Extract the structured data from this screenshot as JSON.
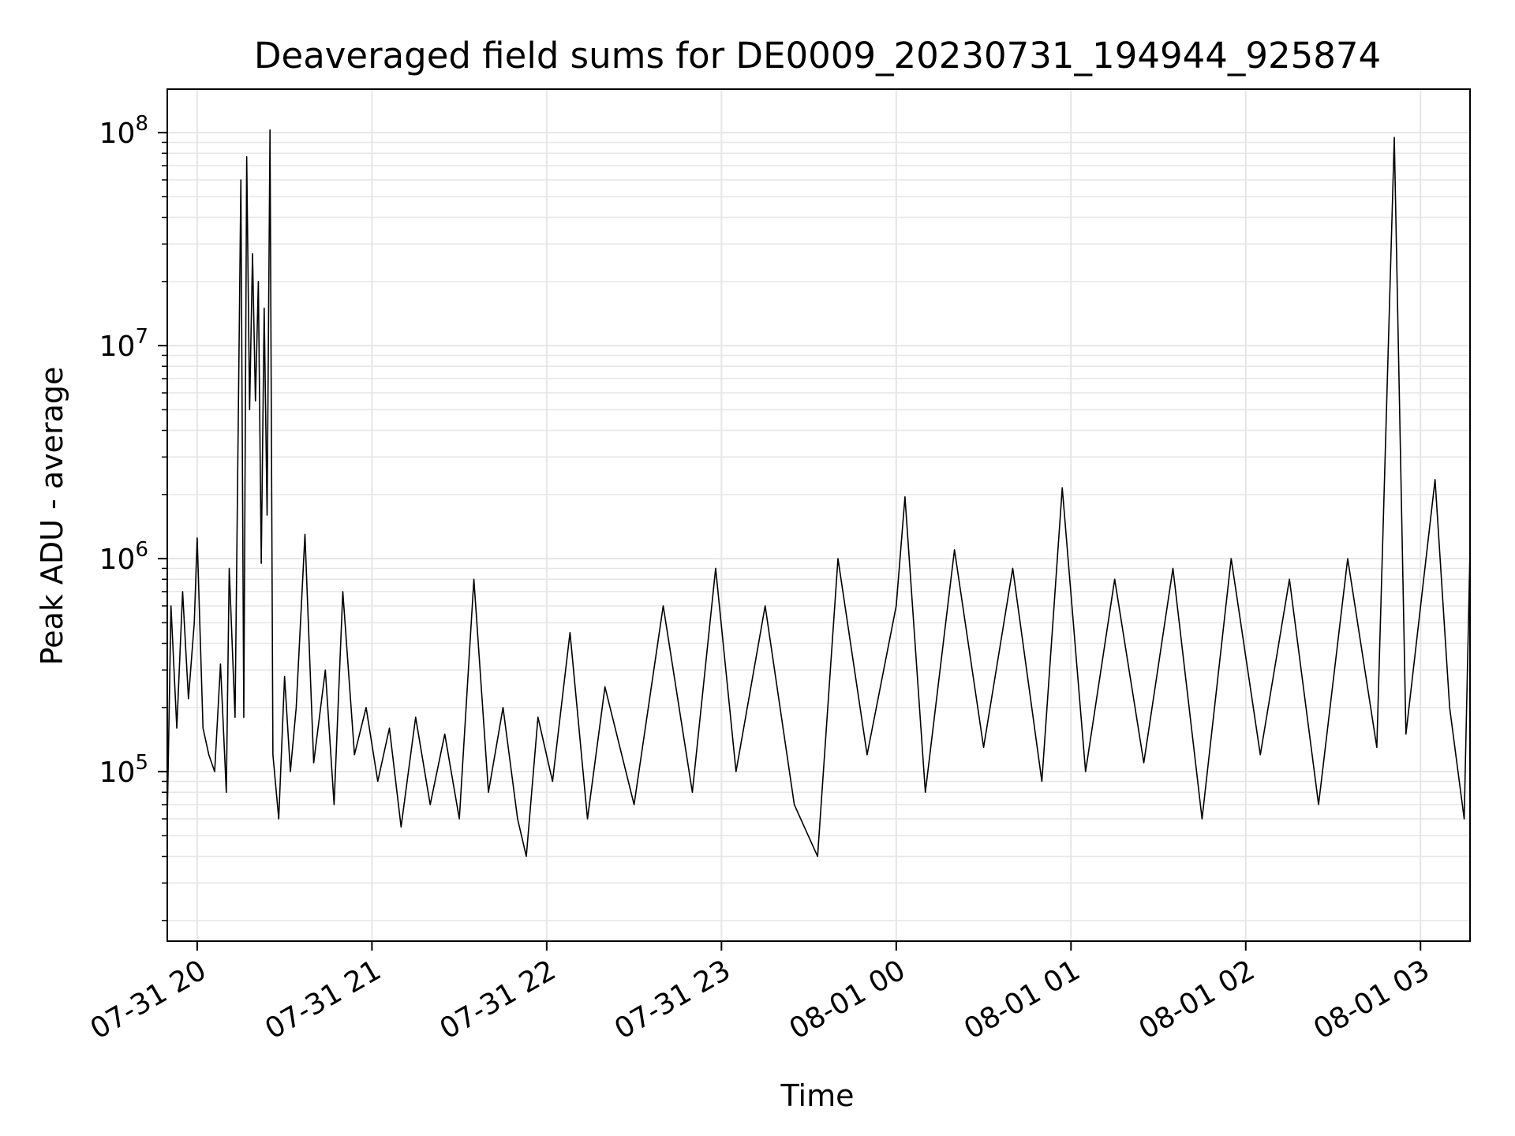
{
  "chart_data": {
    "type": "line",
    "title": "Deaveraged field sums for DE0009_20230731_194944_925874",
    "xlabel": "Time",
    "ylabel": "Peak ADU - average",
    "yscale": "log",
    "ylim": [
      16000,
      160000000
    ],
    "xlim": [
      "2023-07-31 19:49:44",
      "2023-08-01 03:17:00"
    ],
    "grid": true,
    "line_color": "#000000",
    "grid_color": "#e6e6e6",
    "x_ticks": [
      {
        "value": "2023-07-31 20:00",
        "label": "07-31 20"
      },
      {
        "value": "2023-07-31 21:00",
        "label": "07-31 21"
      },
      {
        "value": "2023-07-31 22:00",
        "label": "07-31 22"
      },
      {
        "value": "2023-07-31 23:00",
        "label": "07-31 23"
      },
      {
        "value": "2023-08-01 00:00",
        "label": "08-01 00"
      },
      {
        "value": "2023-08-01 01:00",
        "label": "08-01 01"
      },
      {
        "value": "2023-08-01 02:00",
        "label": "08-01 02"
      },
      {
        "value": "2023-08-01 03:00",
        "label": "08-01 03"
      }
    ],
    "y_ticks": [
      {
        "value": 100000,
        "base": "10",
        "exp": "5"
      },
      {
        "value": 1000000,
        "base": "10",
        "exp": "6"
      },
      {
        "value": 10000000,
        "base": "10",
        "exp": "7"
      },
      {
        "value": 100000000,
        "base": "10",
        "exp": "8"
      }
    ],
    "series": [
      {
        "points": [
          [
            "2023-07-31 19:49:44",
            60000
          ],
          [
            "2023-07-31 19:51",
            600000
          ],
          [
            "2023-07-31 19:53",
            160000
          ],
          [
            "2023-07-31 19:55",
            700000
          ],
          [
            "2023-07-31 19:57",
            220000
          ],
          [
            "2023-07-31 19:59",
            500000
          ],
          [
            "2023-07-31 20:00",
            1250000
          ],
          [
            "2023-07-31 20:02",
            160000
          ],
          [
            "2023-07-31 20:04",
            120000
          ],
          [
            "2023-07-31 20:06",
            100000
          ],
          [
            "2023-07-31 20:08",
            320000
          ],
          [
            "2023-07-31 20:10",
            80000
          ],
          [
            "2023-07-31 20:11",
            900000
          ],
          [
            "2023-07-31 20:13",
            180000
          ],
          [
            "2023-07-31 20:15",
            60000000
          ],
          [
            "2023-07-31 20:16",
            180000
          ],
          [
            "2023-07-31 20:17",
            77000000
          ],
          [
            "2023-07-31 20:18",
            5000000
          ],
          [
            "2023-07-31 20:19",
            27000000
          ],
          [
            "2023-07-31 20:20",
            5500000
          ],
          [
            "2023-07-31 20:21",
            20000000
          ],
          [
            "2023-07-31 20:22",
            950000
          ],
          [
            "2023-07-31 20:23",
            15000000
          ],
          [
            "2023-07-31 20:24",
            1600000
          ],
          [
            "2023-07-31 20:25",
            103000000
          ],
          [
            "2023-07-31 20:26",
            120000
          ],
          [
            "2023-07-31 20:28",
            60000
          ],
          [
            "2023-07-31 20:30",
            280000
          ],
          [
            "2023-07-31 20:32",
            100000
          ],
          [
            "2023-07-31 20:34",
            200000
          ],
          [
            "2023-07-31 20:37",
            1300000
          ],
          [
            "2023-07-31 20:40",
            110000
          ],
          [
            "2023-07-31 20:44",
            300000
          ],
          [
            "2023-07-31 20:47",
            70000
          ],
          [
            "2023-07-31 20:50",
            700000
          ],
          [
            "2023-07-31 20:54",
            120000
          ],
          [
            "2023-07-31 20:58",
            200000
          ],
          [
            "2023-07-31 21:02",
            90000
          ],
          [
            "2023-07-31 21:06",
            160000
          ],
          [
            "2023-07-31 21:10",
            55000
          ],
          [
            "2023-07-31 21:15",
            180000
          ],
          [
            "2023-07-31 21:20",
            70000
          ],
          [
            "2023-07-31 21:25",
            150000
          ],
          [
            "2023-07-31 21:30",
            60000
          ],
          [
            "2023-07-31 21:35",
            800000
          ],
          [
            "2023-07-31 21:40",
            80000
          ],
          [
            "2023-07-31 21:45",
            200000
          ],
          [
            "2023-07-31 21:50",
            60000
          ],
          [
            "2023-07-31 21:53",
            40000
          ],
          [
            "2023-07-31 21:57",
            180000
          ],
          [
            "2023-07-31 22:02",
            90000
          ],
          [
            "2023-07-31 22:08",
            450000
          ],
          [
            "2023-07-31 22:14",
            60000
          ],
          [
            "2023-07-31 22:20",
            250000
          ],
          [
            "2023-07-31 22:30",
            70000
          ],
          [
            "2023-07-31 22:40",
            600000
          ],
          [
            "2023-07-31 22:50",
            80000
          ],
          [
            "2023-07-31 22:58",
            900000
          ],
          [
            "2023-07-31 23:05",
            100000
          ],
          [
            "2023-07-31 23:15",
            600000
          ],
          [
            "2023-07-31 23:25",
            70000
          ],
          [
            "2023-07-31 23:33",
            40000
          ],
          [
            "2023-07-31 23:40",
            1000000
          ],
          [
            "2023-07-31 23:50",
            120000
          ],
          [
            "2023-08-01 00:00",
            600000
          ],
          [
            "2023-08-01 00:03",
            1950000
          ],
          [
            "2023-08-01 00:10",
            80000
          ],
          [
            "2023-08-01 00:20",
            1100000
          ],
          [
            "2023-08-01 00:30",
            130000
          ],
          [
            "2023-08-01 00:40",
            900000
          ],
          [
            "2023-08-01 00:50",
            90000
          ],
          [
            "2023-08-01 00:57",
            2150000
          ],
          [
            "2023-08-01 01:05",
            100000
          ],
          [
            "2023-08-01 01:15",
            800000
          ],
          [
            "2023-08-01 01:25",
            110000
          ],
          [
            "2023-08-01 01:35",
            900000
          ],
          [
            "2023-08-01 01:45",
            60000
          ],
          [
            "2023-08-01 01:55",
            1000000
          ],
          [
            "2023-08-01 02:05",
            120000
          ],
          [
            "2023-08-01 02:15",
            800000
          ],
          [
            "2023-08-01 02:25",
            70000
          ],
          [
            "2023-08-01 02:35",
            1000000
          ],
          [
            "2023-08-01 02:45",
            130000
          ],
          [
            "2023-08-01 02:51",
            95000000
          ],
          [
            "2023-08-01 02:55",
            150000
          ],
          [
            "2023-08-01 03:05",
            2350000
          ],
          [
            "2023-08-01 03:10",
            200000
          ],
          [
            "2023-08-01 03:15",
            60000
          ],
          [
            "2023-08-01 03:17",
            1100000
          ]
        ]
      }
    ]
  }
}
